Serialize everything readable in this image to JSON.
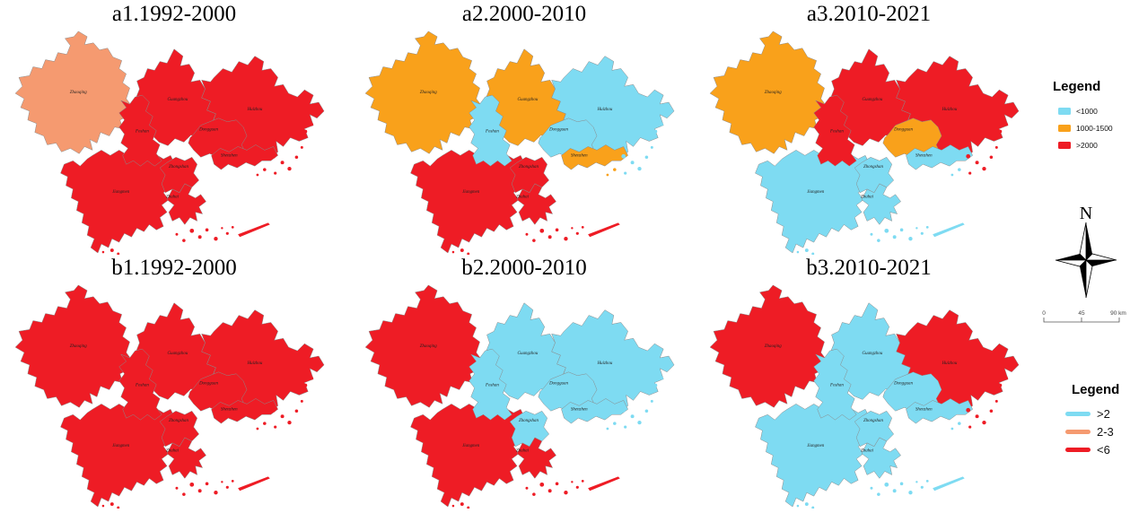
{
  "colors": {
    "blue": "#7EDBF2",
    "orange": "#F9A11B",
    "red": "#EE1C25",
    "salmon": "#F59A70",
    "border": "#8a8a8a",
    "label": "#1f1f1f"
  },
  "cities": {
    "zhaoqing": "Zhaoqing",
    "guangzhou": "Guangzhou",
    "huizhou": "Huizhou",
    "foshan": "Foshan",
    "dongguan": "Dongguan",
    "shenzhen": "Shenzhen",
    "zhongshan": "Zhongshan",
    "jiangmen": "Jiangmen",
    "zhuhai": "Zhuhai"
  },
  "panels": [
    {
      "id": "a1",
      "title": "a1.1992-2000",
      "fills": {
        "zhaoqing": "salmon",
        "guangzhou": "red",
        "huizhou": "red",
        "foshan": "red",
        "dongguan": "red",
        "shenzhen": "red",
        "zhongshan": "red",
        "jiangmen": "red",
        "zhuhai": "red"
      }
    },
    {
      "id": "a2",
      "title": "a2.2000-2010",
      "fills": {
        "zhaoqing": "orange",
        "guangzhou": "orange",
        "huizhou": "blue",
        "foshan": "blue",
        "dongguan": "blue",
        "shenzhen": "orange",
        "zhongshan": "red",
        "jiangmen": "red",
        "zhuhai": "red"
      }
    },
    {
      "id": "a3",
      "title": "a3.2010-2021",
      "fills": {
        "zhaoqing": "orange",
        "guangzhou": "red",
        "huizhou": "red",
        "foshan": "red",
        "dongguan": "orange",
        "shenzhen": "blue",
        "zhongshan": "blue",
        "jiangmen": "blue",
        "zhuhai": "blue"
      }
    },
    {
      "id": "b1",
      "title": "b1.1992-2000",
      "fills": {
        "zhaoqing": "red",
        "guangzhou": "red",
        "huizhou": "red",
        "foshan": "red",
        "dongguan": "red",
        "shenzhen": "red",
        "zhongshan": "red",
        "jiangmen": "red",
        "zhuhai": "red"
      }
    },
    {
      "id": "b2",
      "title": "b2.2000-2010",
      "fills": {
        "zhaoqing": "red",
        "guangzhou": "blue",
        "huizhou": "blue",
        "foshan": "blue",
        "dongguan": "blue",
        "shenzhen": "blue",
        "zhongshan": "blue",
        "jiangmen": "red",
        "zhuhai": "red"
      }
    },
    {
      "id": "b3",
      "title": "b3.2010-2021",
      "fills": {
        "zhaoqing": "red",
        "guangzhou": "blue",
        "huizhou": "red",
        "foshan": "blue",
        "dongguan": "blue",
        "shenzhen": "blue",
        "zhongshan": "blue",
        "jiangmen": "blue",
        "zhuhai": "blue"
      }
    }
  ],
  "legend_top": {
    "title": "Legend",
    "items": [
      {
        "label": "<1000",
        "color": "blue"
      },
      {
        "label": "1000-1500",
        "color": "orange"
      },
      {
        "label": ">2000",
        "color": "red"
      }
    ]
  },
  "legend_bottom": {
    "title": "Legend",
    "items": [
      {
        "label": ">2",
        "color": "blue"
      },
      {
        "label": "2-3",
        "color": "salmon"
      },
      {
        "label": "<6",
        "color": "red"
      }
    ]
  },
  "compass": {
    "label": "N"
  },
  "scale_bar": {
    "labels": [
      "0",
      "45",
      "90 km"
    ]
  }
}
